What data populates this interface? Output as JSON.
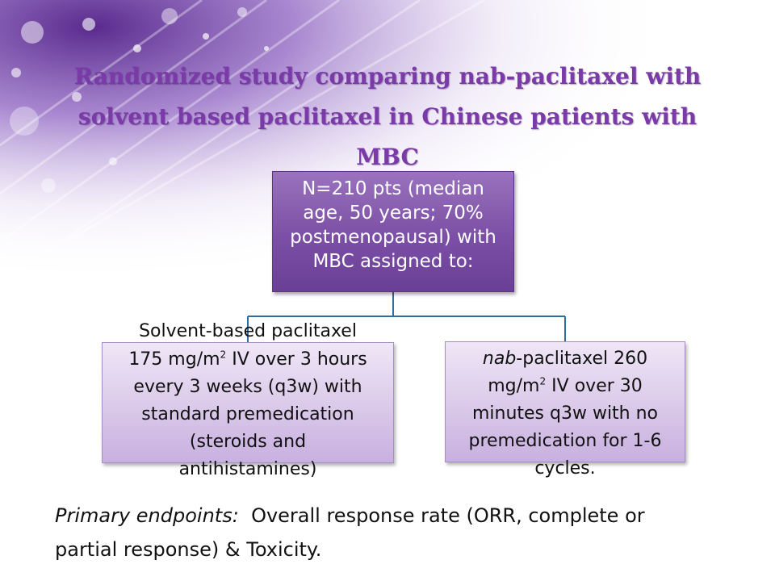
{
  "title": {
    "lines": [
      "Randomized study comparing nab-paclitaxel with",
      "solvent based paclitaxel in Chinese patients with",
      "MBC"
    ]
  },
  "population_box": {
    "lines": [
      "N=210 pts (median",
      "age, 50 years; 70%",
      "postmenopausal) with",
      "MBC assigned to:"
    ]
  },
  "arm_left": {
    "heading": "Solvent-based paclitaxel",
    "line1_pre": "175 mg/m",
    "line1_sup": "2",
    "line1_post": " IV over 3 hours",
    "lines": [
      "every 3 weeks (q3w) with",
      "standard premedication",
      "(steroids and",
      "antihistamines)"
    ]
  },
  "arm_right": {
    "italic_prefix": "nab",
    "line1_rest": "-paclitaxel 260",
    "line2_pre": "mg/m",
    "line2_sup": "2",
    "line2_post": " IV over 30",
    "lines": [
      "minutes q3w with no",
      "premedication for 1-6",
      "cycles."
    ]
  },
  "endpoints": {
    "label": "Primary endpoints:",
    "text_line1": "  Overall response rate (ORR, complete or",
    "text_line2": "partial response) & Toxicity."
  },
  "colors": {
    "title": "#7a3aa8",
    "top_box": "#7b4fa5",
    "arm_box": "#d8c6e8",
    "connector": "#2e6e9e"
  }
}
